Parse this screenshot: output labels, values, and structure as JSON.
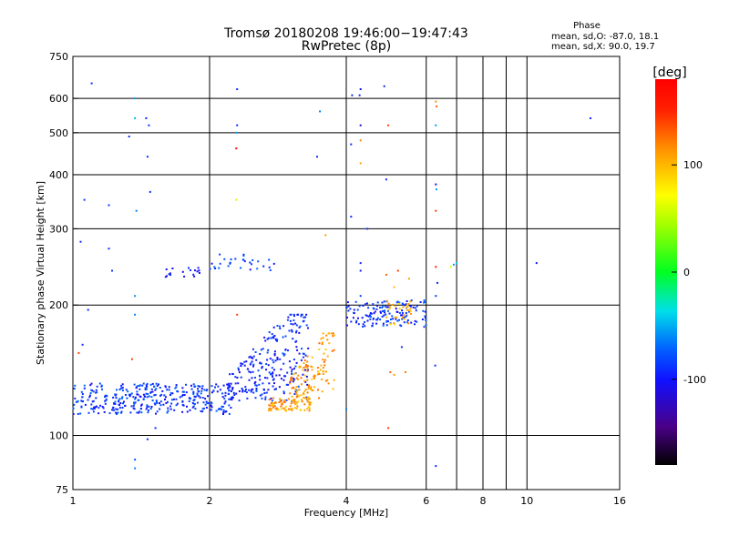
{
  "chart_data": {
    "type": "scatter",
    "title": "Tromsø 20180208 19:46:00−19:47:43",
    "subtitle": "RwPretec (8p)",
    "phase_info": {
      "heading": "Phase",
      "line_o": "mean, sd,O: -87.0, 18.1",
      "line_x": "mean, sd,X:  90.0, 19.7"
    },
    "xlabel": "Frequency [MHz]",
    "ylabel": "Stationary phase Virtual Height [km]",
    "x_scale": "log2",
    "y_scale": "log",
    "xlim": [
      1,
      16
    ],
    "ylim": [
      75,
      750
    ],
    "x_ticks": [
      1,
      2,
      4,
      6,
      8,
      10,
      16
    ],
    "x_tick_labels": [
      "1",
      "2",
      "4",
      "6",
      "8",
      "10",
      "16"
    ],
    "y_ticks": [
      75,
      100,
      200,
      300,
      400,
      500,
      600,
      750
    ],
    "y_tick_labels": [
      "75",
      "100",
      "200",
      "300",
      "400",
      "500",
      "600",
      "750"
    ],
    "grid": true,
    "colorbar": {
      "label": "[deg]",
      "range": [
        -180,
        180
      ],
      "ticks": [
        -100,
        0,
        100
      ],
      "tick_labels": [
        "-100",
        "0",
        "100"
      ]
    },
    "clusters": [
      {
        "x_range": [
          1.0,
          2.25
        ],
        "y_range": [
          112,
          132
        ],
        "phase": -97,
        "count": 360
      },
      {
        "x_range": [
          2.2,
          3.3
        ],
        "y_range": [
          120,
          190
        ],
        "phase": -102,
        "count": 260
      },
      {
        "x_range": [
          2.7,
          3.35
        ],
        "y_range": [
          114,
          122
        ],
        "phase": 108,
        "count": 90
      },
      {
        "x_range": [
          3.0,
          3.8
        ],
        "y_range": [
          122,
          172
        ],
        "phase": 112,
        "count": 120
      },
      {
        "x_range": [
          4.0,
          6.0
        ],
        "y_range": [
          178,
          205
        ],
        "phase": -98,
        "count": 140
      },
      {
        "x_range": [
          4.9,
          5.6
        ],
        "y_range": [
          180,
          205
        ],
        "phase": 100,
        "count": 30
      },
      {
        "x_range": [
          2.0,
          2.8
        ],
        "y_range": [
          240,
          262
        ],
        "phase": -95,
        "count": 30
      },
      {
        "x_range": [
          1.6,
          1.9
        ],
        "y_range": [
          232,
          244
        ],
        "phase": -110,
        "count": 18
      }
    ],
    "points": [
      {
        "x": 1.1,
        "y": 650,
        "phase": -100
      },
      {
        "x": 1.2,
        "y": 340,
        "phase": -95
      },
      {
        "x": 1.37,
        "y": 600,
        "phase": -60
      },
      {
        "x": 1.37,
        "y": 540,
        "phase": -55
      },
      {
        "x": 1.33,
        "y": 490,
        "phase": -100
      },
      {
        "x": 1.45,
        "y": 540,
        "phase": -105
      },
      {
        "x": 1.47,
        "y": 520,
        "phase": -100
      },
      {
        "x": 1.46,
        "y": 440,
        "phase": -98
      },
      {
        "x": 1.48,
        "y": 365,
        "phase": -100
      },
      {
        "x": 1.38,
        "y": 330,
        "phase": -70
      },
      {
        "x": 1.37,
        "y": 210,
        "phase": -65
      },
      {
        "x": 1.37,
        "y": 190,
        "phase": -70
      },
      {
        "x": 1.35,
        "y": 150,
        "phase": 140
      },
      {
        "x": 1.2,
        "y": 270,
        "phase": -100
      },
      {
        "x": 1.22,
        "y": 240,
        "phase": -95
      },
      {
        "x": 1.04,
        "y": 280,
        "phase": -100
      },
      {
        "x": 1.06,
        "y": 350,
        "phase": -95
      },
      {
        "x": 1.08,
        "y": 195,
        "phase": -100
      },
      {
        "x": 1.03,
        "y": 155,
        "phase": 140
      },
      {
        "x": 1.05,
        "y": 162,
        "phase": -100
      },
      {
        "x": 1.37,
        "y": 88,
        "phase": -80
      },
      {
        "x": 1.37,
        "y": 84,
        "phase": -70
      },
      {
        "x": 1.46,
        "y": 98,
        "phase": -100
      },
      {
        "x": 1.52,
        "y": 104,
        "phase": -100
      },
      {
        "x": 2.3,
        "y": 630,
        "phase": -100
      },
      {
        "x": 2.3,
        "y": 520,
        "phase": -100
      },
      {
        "x": 2.29,
        "y": 500,
        "phase": -60
      },
      {
        "x": 2.29,
        "y": 460,
        "phase": 175
      },
      {
        "x": 2.29,
        "y": 350,
        "phase": 60
      },
      {
        "x": 2.3,
        "y": 190,
        "phase": 140
      },
      {
        "x": 3.5,
        "y": 560,
        "phase": -70
      },
      {
        "x": 3.45,
        "y": 440,
        "phase": -100
      },
      {
        "x": 3.6,
        "y": 290,
        "phase": 110
      },
      {
        "x": 4.3,
        "y": 630,
        "phase": -110
      },
      {
        "x": 4.28,
        "y": 610,
        "phase": -100
      },
      {
        "x": 4.12,
        "y": 610,
        "phase": -100
      },
      {
        "x": 4.3,
        "y": 520,
        "phase": -130
      },
      {
        "x": 4.3,
        "y": 480,
        "phase": 120
      },
      {
        "x": 4.1,
        "y": 470,
        "phase": -100
      },
      {
        "x": 4.3,
        "y": 425,
        "phase": 110
      },
      {
        "x": 4.1,
        "y": 320,
        "phase": -100
      },
      {
        "x": 4.45,
        "y": 300,
        "phase": -95
      },
      {
        "x": 4.3,
        "y": 250,
        "phase": -100
      },
      {
        "x": 4.3,
        "y": 240,
        "phase": -105
      },
      {
        "x": 4.3,
        "y": 210,
        "phase": -95
      },
      {
        "x": 4.0,
        "y": 115,
        "phase": -70
      },
      {
        "x": 4.85,
        "y": 640,
        "phase": -100
      },
      {
        "x": 4.95,
        "y": 520,
        "phase": 140
      },
      {
        "x": 4.9,
        "y": 390,
        "phase": -100
      },
      {
        "x": 4.9,
        "y": 235,
        "phase": 130
      },
      {
        "x": 5.1,
        "y": 220,
        "phase": 100
      },
      {
        "x": 5.2,
        "y": 240,
        "phase": 140
      },
      {
        "x": 5.5,
        "y": 230,
        "phase": 110
      },
      {
        "x": 5.0,
        "y": 140,
        "phase": 130
      },
      {
        "x": 5.1,
        "y": 138,
        "phase": 110
      },
      {
        "x": 5.4,
        "y": 140,
        "phase": 120
      },
      {
        "x": 4.95,
        "y": 104,
        "phase": 140
      },
      {
        "x": 5.3,
        "y": 160,
        "phase": -100
      },
      {
        "x": 6.3,
        "y": 590,
        "phase": 115
      },
      {
        "x": 6.32,
        "y": 575,
        "phase": 130
      },
      {
        "x": 6.3,
        "y": 520,
        "phase": -60
      },
      {
        "x": 6.3,
        "y": 380,
        "phase": -120
      },
      {
        "x": 6.32,
        "y": 370,
        "phase": -60
      },
      {
        "x": 6.3,
        "y": 330,
        "phase": 140
      },
      {
        "x": 6.3,
        "y": 245,
        "phase": 150
      },
      {
        "x": 6.35,
        "y": 225,
        "phase": -100
      },
      {
        "x": 6.3,
        "y": 210,
        "phase": -95
      },
      {
        "x": 6.3,
        "y": 85,
        "phase": -100
      },
      {
        "x": 6.28,
        "y": 145,
        "phase": -100
      },
      {
        "x": 6.8,
        "y": 245,
        "phase": 60
      },
      {
        "x": 6.9,
        "y": 248,
        "phase": -60
      },
      {
        "x": 7.0,
        "y": 250,
        "phase": -50
      },
      {
        "x": 10.5,
        "y": 250,
        "phase": -110
      },
      {
        "x": 13.8,
        "y": 540,
        "phase": -100
      }
    ]
  }
}
